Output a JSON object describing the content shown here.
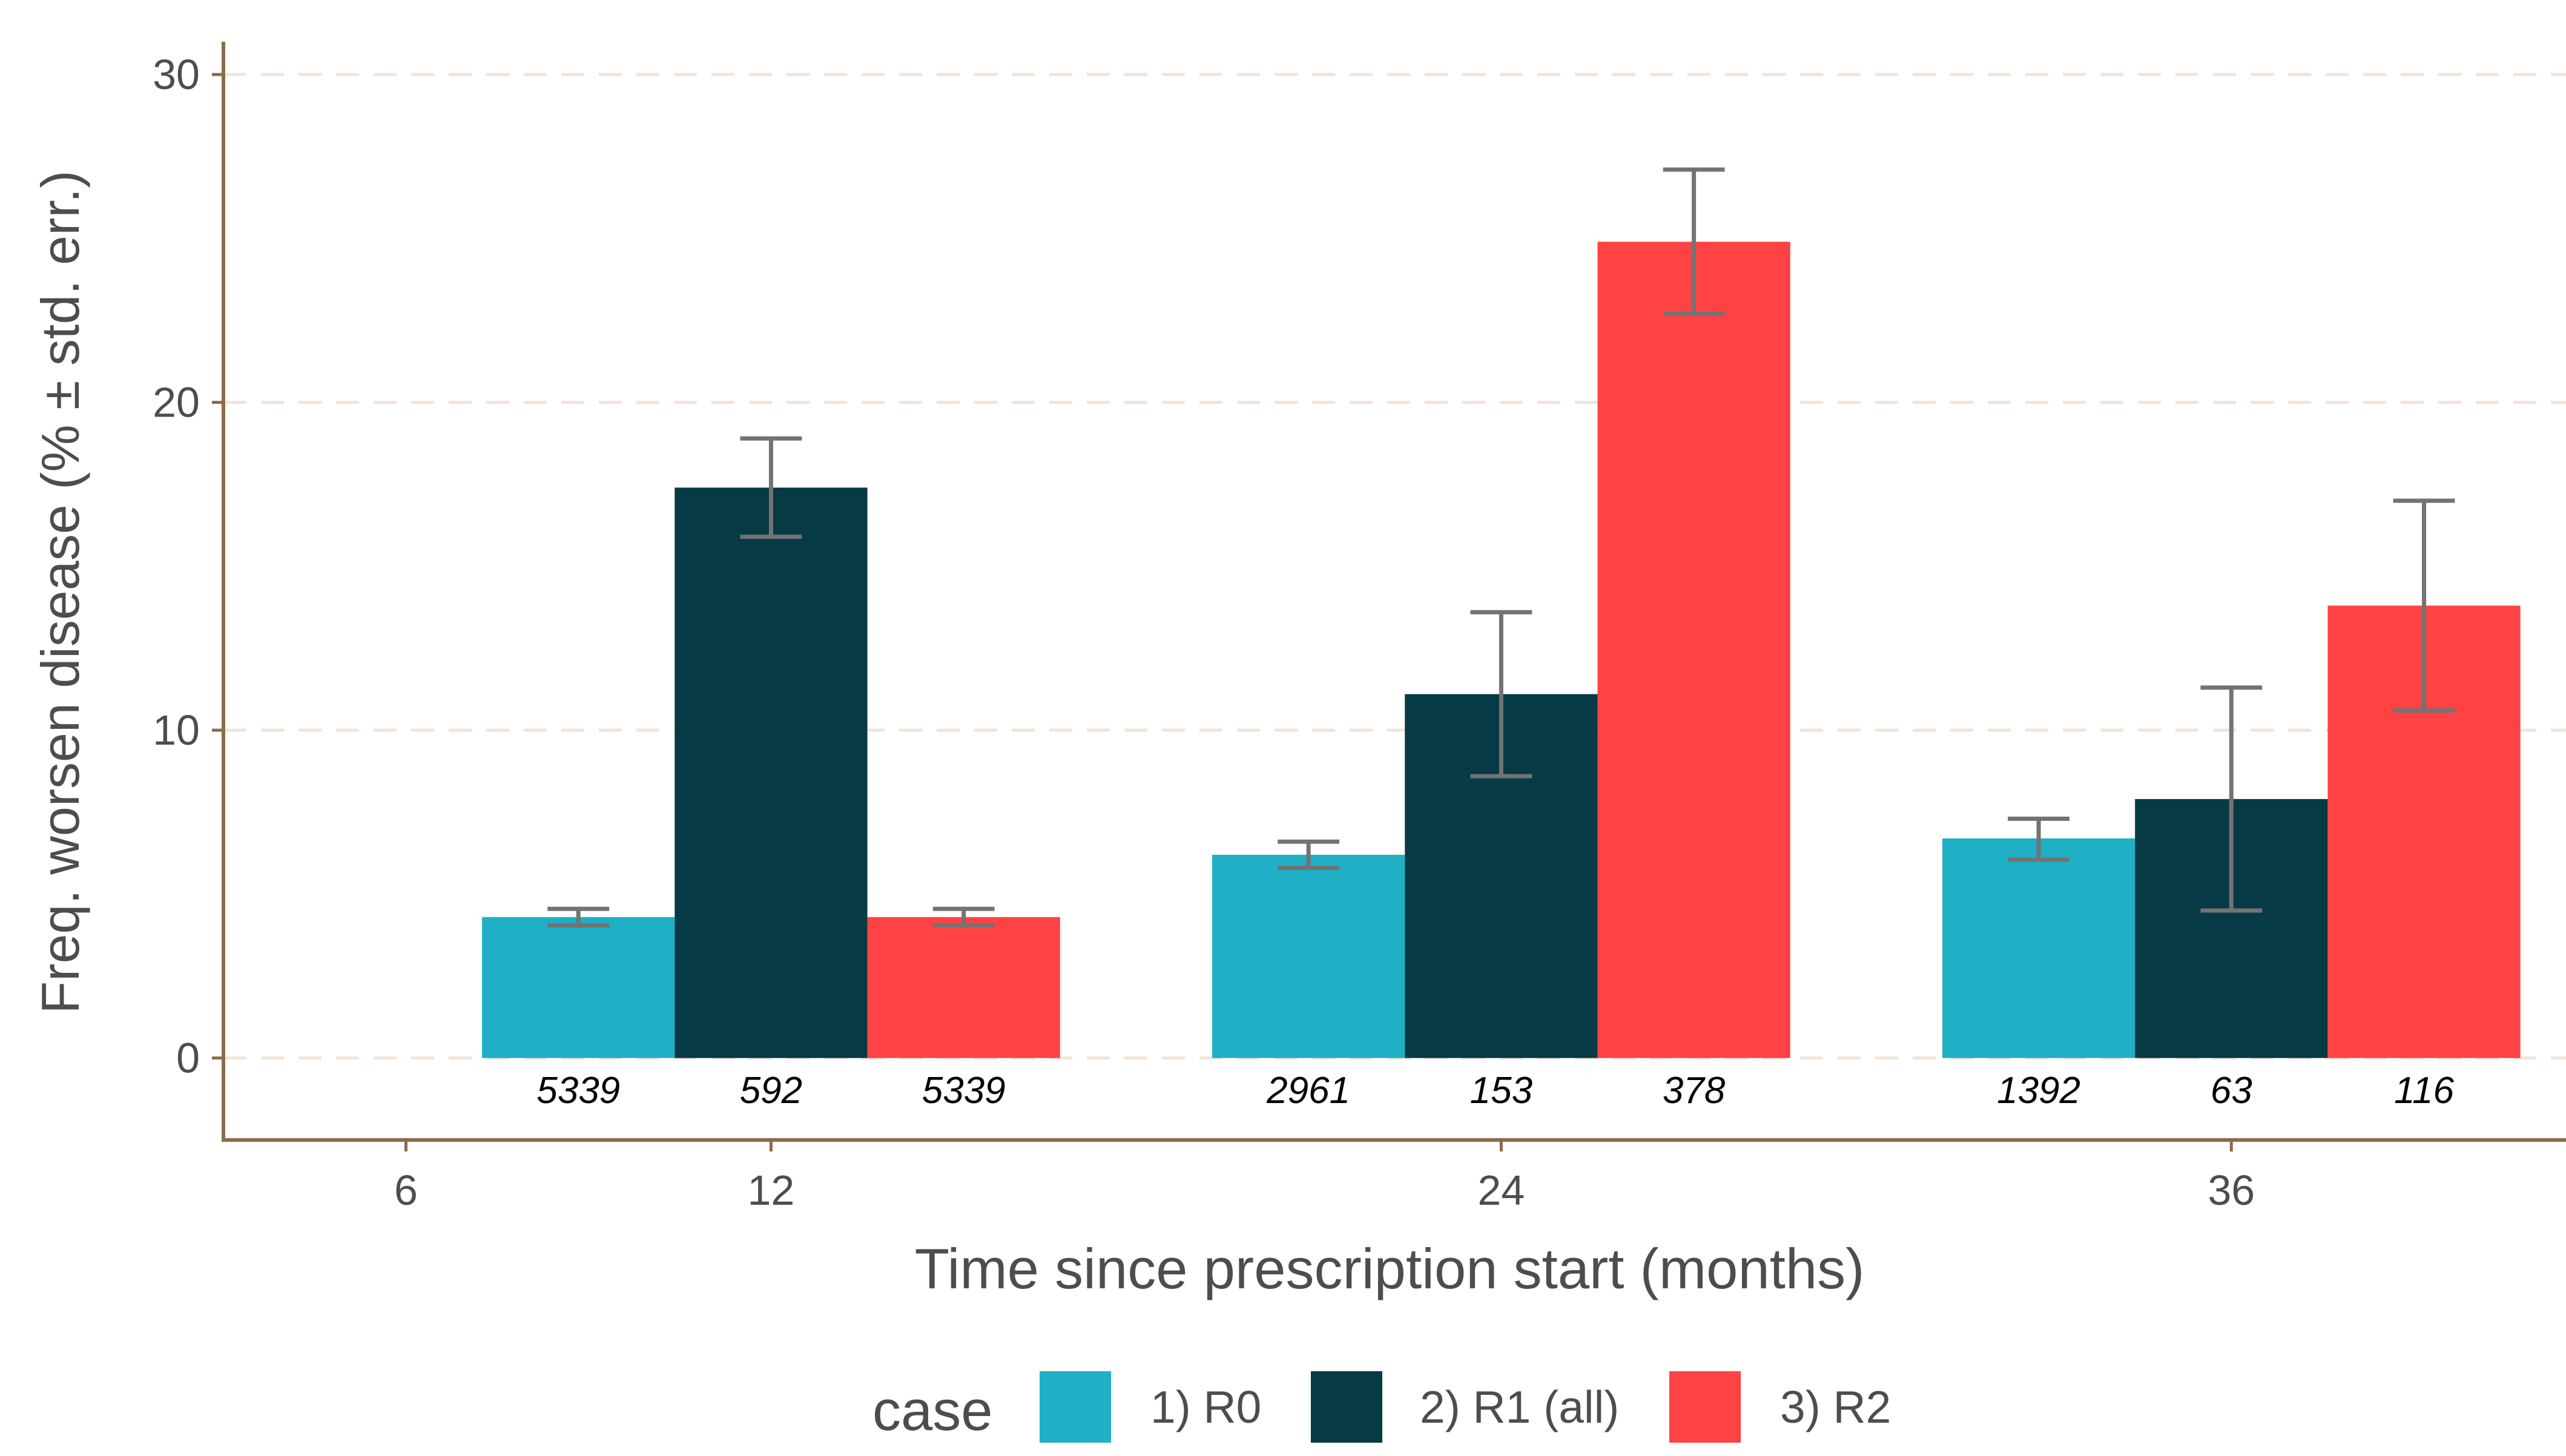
{
  "chart_data": {
    "type": "bar",
    "title": "",
    "xlabel": "Time since prescription start (months)",
    "ylabel": "Freq. worsen disease (% ± std. err.)",
    "ylim": [
      -2.5,
      31
    ],
    "xlim": [
      3,
      41.5
    ],
    "x_ticks": [
      6,
      12,
      24,
      36
    ],
    "x_tick_labels": [
      "6",
      "12",
      "24",
      "36"
    ],
    "y_ticks": [
      0,
      10,
      20,
      30
    ],
    "y_tick_labels": [
      "0",
      "10",
      "20",
      "30"
    ],
    "grid": "horizontal dashed",
    "legend": {
      "title": "case",
      "position": "bottom"
    },
    "x": [
      12,
      24,
      36
    ],
    "series": [
      {
        "name": "1) R0",
        "color": "#1FB0C5",
        "values": [
          4.3,
          6.2,
          6.7
        ],
        "err_low": [
          4.05,
          5.8,
          6.05
        ],
        "err_high": [
          4.55,
          6.6,
          7.3
        ],
        "n": [
          "5339",
          "2961",
          "1392"
        ]
      },
      {
        "name": "2) R1 (all)",
        "color": "#063A44",
        "values": [
          17.4,
          11.1,
          7.9
        ],
        "err_low": [
          15.9,
          8.6,
          4.5
        ],
        "err_high": [
          18.9,
          13.6,
          11.3
        ],
        "n": [
          "592",
          "153",
          "63"
        ]
      },
      {
        "name": "3) R2",
        "color": "#FF4244",
        "values": [
          4.3,
          24.9,
          13.8
        ],
        "err_low": [
          4.05,
          22.7,
          10.6
        ],
        "err_high": [
          4.55,
          27.1,
          17.0
        ],
        "n": [
          "5339",
          "378",
          "116"
        ]
      }
    ]
  },
  "colors": {
    "axis": "#8B6B4A",
    "grid": "#F3E3D6",
    "error_bar": "#737373",
    "text": "#4D4D4D"
  }
}
